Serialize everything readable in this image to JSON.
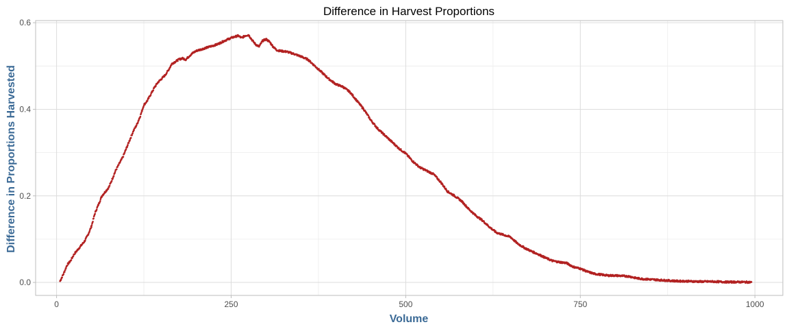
{
  "chart_data": {
    "type": "scatter",
    "title": "Difference in Harvest Proportions",
    "xlabel": "Volume",
    "ylabel": "Difference in Proportions Harvested",
    "xlim": [
      -30,
      1040
    ],
    "ylim": [
      -0.03,
      0.605
    ],
    "x_ticks": [
      0,
      250,
      500,
      750,
      1000
    ],
    "x_tick_labels": [
      "0",
      "250",
      "500",
      "750",
      "1000"
    ],
    "x_minor_ticks": [
      125,
      375,
      625,
      875
    ],
    "y_ticks": [
      0.0,
      0.2,
      0.4,
      0.6
    ],
    "y_tick_labels": [
      "0.0",
      "0.2",
      "0.4",
      "0.6"
    ],
    "y_minor_ticks": [
      0.1,
      0.3,
      0.5
    ],
    "grid": true,
    "legend": "none",
    "point_color": "#b22222",
    "curve": [
      [
        5,
        0.003
      ],
      [
        10,
        0.02
      ],
      [
        15,
        0.04
      ],
      [
        20,
        0.05
      ],
      [
        25,
        0.065
      ],
      [
        30,
        0.075
      ],
      [
        35,
        0.085
      ],
      [
        40,
        0.095
      ],
      [
        45,
        0.11
      ],
      [
        50,
        0.13
      ],
      [
        55,
        0.16
      ],
      [
        60,
        0.18
      ],
      [
        65,
        0.2
      ],
      [
        70,
        0.21
      ],
      [
        75,
        0.22
      ],
      [
        80,
        0.24
      ],
      [
        85,
        0.26
      ],
      [
        90,
        0.275
      ],
      [
        95,
        0.29
      ],
      [
        100,
        0.31
      ],
      [
        105,
        0.33
      ],
      [
        110,
        0.35
      ],
      [
        115,
        0.365
      ],
      [
        120,
        0.385
      ],
      [
        125,
        0.41
      ],
      [
        130,
        0.42
      ],
      [
        135,
        0.435
      ],
      [
        140,
        0.45
      ],
      [
        145,
        0.462
      ],
      [
        150,
        0.47
      ],
      [
        155,
        0.478
      ],
      [
        160,
        0.49
      ],
      [
        165,
        0.505
      ],
      [
        170,
        0.51
      ],
      [
        175,
        0.515
      ],
      [
        180,
        0.518
      ],
      [
        185,
        0.515
      ],
      [
        190,
        0.523
      ],
      [
        195,
        0.53
      ],
      [
        200,
        0.535
      ],
      [
        210,
        0.54
      ],
      [
        220,
        0.545
      ],
      [
        230,
        0.55
      ],
      [
        240,
        0.558
      ],
      [
        250,
        0.565
      ],
      [
        260,
        0.57
      ],
      [
        265,
        0.565
      ],
      [
        270,
        0.57
      ],
      [
        275,
        0.572
      ],
      [
        280,
        0.56
      ],
      [
        285,
        0.55
      ],
      [
        290,
        0.545
      ],
      [
        295,
        0.558
      ],
      [
        300,
        0.562
      ],
      [
        305,
        0.556
      ],
      [
        310,
        0.545
      ],
      [
        315,
        0.537
      ],
      [
        320,
        0.535
      ],
      [
        330,
        0.533
      ],
      [
        340,
        0.528
      ],
      [
        350,
        0.522
      ],
      [
        360,
        0.515
      ],
      [
        370,
        0.5
      ],
      [
        380,
        0.485
      ],
      [
        390,
        0.47
      ],
      [
        400,
        0.458
      ],
      [
        410,
        0.452
      ],
      [
        420,
        0.44
      ],
      [
        430,
        0.42
      ],
      [
        440,
        0.4
      ],
      [
        450,
        0.375
      ],
      [
        460,
        0.355
      ],
      [
        470,
        0.34
      ],
      [
        480,
        0.325
      ],
      [
        490,
        0.31
      ],
      [
        500,
        0.298
      ],
      [
        510,
        0.28
      ],
      [
        520,
        0.266
      ],
      [
        530,
        0.258
      ],
      [
        540,
        0.25
      ],
      [
        550,
        0.232
      ],
      [
        560,
        0.21
      ],
      [
        570,
        0.2
      ],
      [
        580,
        0.188
      ],
      [
        590,
        0.17
      ],
      [
        600,
        0.155
      ],
      [
        610,
        0.143
      ],
      [
        620,
        0.128
      ],
      [
        630,
        0.115
      ],
      [
        640,
        0.11
      ],
      [
        650,
        0.105
      ],
      [
        660,
        0.09
      ],
      [
        670,
        0.08
      ],
      [
        680,
        0.072
      ],
      [
        690,
        0.065
      ],
      [
        700,
        0.057
      ],
      [
        710,
        0.05
      ],
      [
        720,
        0.047
      ],
      [
        730,
        0.045
      ],
      [
        740,
        0.036
      ],
      [
        750,
        0.032
      ],
      [
        760,
        0.025
      ],
      [
        770,
        0.02
      ],
      [
        780,
        0.018
      ],
      [
        790,
        0.016
      ],
      [
        800,
        0.016
      ],
      [
        810,
        0.015
      ],
      [
        820,
        0.014
      ],
      [
        830,
        0.01
      ],
      [
        840,
        0.008
      ],
      [
        850,
        0.007
      ],
      [
        860,
        0.006
      ],
      [
        870,
        0.005
      ],
      [
        880,
        0.004
      ],
      [
        890,
        0.003
      ],
      [
        900,
        0.003
      ],
      [
        920,
        0.002
      ],
      [
        940,
        0.002
      ],
      [
        960,
        0.001
      ],
      [
        980,
        0.001
      ],
      [
        995,
        0.0005
      ]
    ]
  }
}
